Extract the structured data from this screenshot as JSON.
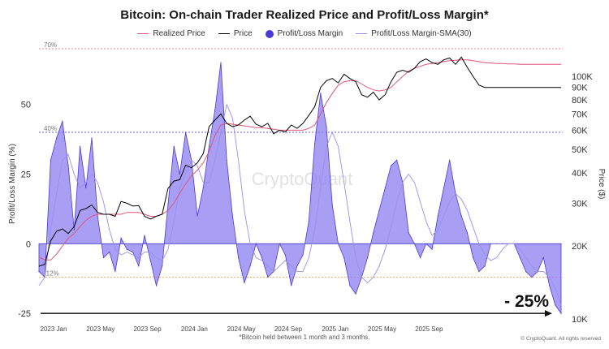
{
  "chart_data": {
    "type": "area",
    "title": "Bitcoin: On-chain Trader Realized Price and Profit/Loss Margin*",
    "footnote": "*Bitcoin held between 1 month and 3 months.",
    "copyright": "© CryptoQuant. All rights reserved",
    "watermark": "CryptoQuant",
    "annotation": "- 25%",
    "ylabel_left": "Profit/Loss Margin (%)",
    "ylabel_right": "Price ($)",
    "left_ticks": [
      "50",
      "25",
      "0",
      "-25"
    ],
    "right_ticks": [
      "100K",
      "90K",
      "80K",
      "70K",
      "60K",
      "50K",
      "40K",
      "30K",
      "20K",
      "10K"
    ],
    "x_ticks": [
      "2023 Jan",
      "2023 May",
      "2023 Sep",
      "2024 Jan",
      "2024 May",
      "2024 Sep",
      "2025 Jan",
      "2025 May",
      "2025 Sep"
    ],
    "ylim_left": [
      -27,
      70
    ],
    "ylim_right_log": [
      10000,
      130000
    ],
    "reference_lines": [
      {
        "label": "70%",
        "value": 70,
        "color": "#e28a8a"
      },
      {
        "label": "40%",
        "value": 40,
        "color": "#6a5acd"
      },
      {
        "label": "-12%",
        "value": -12,
        "color": "#f0b070"
      }
    ],
    "colors": {
      "realized_price": "#e05577",
      "price": "#000000",
      "margin_fill": "#5b4cdb",
      "margin_sma": "#8f82f0"
    },
    "legend": [
      {
        "name": "Realized Price",
        "kind": "line",
        "color": "#e05577"
      },
      {
        "name": "Price",
        "kind": "line",
        "color": "#000000"
      },
      {
        "name": "Profit/Loss Margin",
        "kind": "dot",
        "color": "#4b3ad6"
      },
      {
        "name": "Profit/Loss Margin-SMA(30)",
        "kind": "line",
        "color": "#9a8ef0"
      }
    ],
    "x_months": [
      0,
      0.5,
      1,
      1.5,
      2,
      2.5,
      3,
      3.5,
      4,
      4.5,
      5,
      5.5,
      6,
      6.5,
      7,
      7.5,
      8,
      8.5,
      9,
      9.5,
      10,
      10.5,
      11,
      11.5,
      12,
      12.5,
      13,
      13.5,
      14,
      14.5,
      15,
      15.5,
      16,
      16.5,
      17,
      17.5,
      18,
      18.5,
      19,
      19.5,
      20,
      20.5,
      21,
      21.5,
      22,
      22.5,
      23,
      23.5,
      24,
      24.5,
      25,
      25.5,
      26,
      26.5,
      27,
      27.5,
      28,
      28.5,
      29,
      29.5,
      30,
      30.5,
      31,
      31.5,
      32,
      32.5,
      33,
      33.5,
      34,
      34.5,
      35,
      35.5,
      36,
      36.5,
      37,
      37.5,
      38,
      38.5,
      39,
      39.5,
      40,
      40.5,
      41,
      41.5,
      42,
      42.5,
      43,
      43.5,
      44,
      44.5
    ],
    "margin": [
      -10,
      -12,
      30,
      38,
      44,
      28,
      5,
      35,
      20,
      38,
      10,
      -5,
      -3,
      -10,
      2,
      -2,
      -3,
      -8,
      3,
      -6,
      -15,
      -8,
      14,
      35,
      25,
      40,
      30,
      10,
      20,
      35,
      48,
      65,
      30,
      10,
      -5,
      -14,
      -8,
      0,
      -5,
      -12,
      -10,
      0,
      -4,
      -15,
      -8,
      -4,
      8,
      36,
      54,
      42,
      14,
      0,
      -5,
      -15,
      -18,
      -12,
      -5,
      4,
      12,
      20,
      28,
      30,
      22,
      4,
      0,
      -5,
      0,
      -2,
      10,
      20,
      30,
      18,
      10,
      4,
      -5,
      -10,
      -8,
      0,
      0,
      0,
      0,
      0,
      -5,
      -10,
      -12,
      -10,
      -5,
      -15,
      -22,
      -25
    ],
    "margin_sma": [
      -15,
      -12,
      5,
      18,
      30,
      32,
      25,
      20,
      22,
      25,
      22,
      15,
      5,
      -2,
      -4,
      -3,
      -4,
      -5,
      -3,
      -3,
      -5,
      -6,
      -2,
      8,
      20,
      25,
      30,
      28,
      22,
      22,
      30,
      40,
      50,
      45,
      30,
      12,
      0,
      -5,
      -6,
      -8,
      -10,
      -8,
      -6,
      -8,
      -10,
      -10,
      -5,
      5,
      20,
      35,
      40,
      35,
      22,
      8,
      -5,
      -12,
      -14,
      -12,
      -8,
      -2,
      6,
      15,
      22,
      25,
      22,
      15,
      8,
      3,
      5,
      10,
      15,
      18,
      16,
      12,
      6,
      0,
      -4,
      -6,
      -5,
      -2,
      0,
      0,
      -2,
      -5,
      -8,
      -10,
      -10,
      -12,
      -16,
      -22
    ],
    "price": [
      16500,
      16800,
      21000,
      23000,
      23500,
      22500,
      24000,
      28000,
      28500,
      29500,
      27500,
      27000,
      27000,
      26500,
      30500,
      30000,
      29200,
      29300,
      26500,
      25800,
      26500,
      27000,
      34500,
      37000,
      37500,
      43000,
      42000,
      44000,
      48000,
      62000,
      66000,
      70000,
      64000,
      62000,
      63000,
      66000,
      68500,
      63500,
      62000,
      64000,
      58000,
      60000,
      59000,
      63000,
      61000,
      64000,
      69000,
      75000,
      90000,
      96000,
      98000,
      94000,
      102000,
      98000,
      95000,
      84000,
      82000,
      86000,
      80000,
      84000,
      95000,
      104000,
      106000,
      104000,
      108000,
      115000,
      118000,
      114000,
      112000,
      117000,
      119000,
      112000,
      120000,
      109000,
      100000,
      92000,
      90000,
      90000,
      90000,
      90000,
      90000,
      90000,
      90000,
      90000,
      90000,
      90000,
      90000,
      90000,
      90000,
      90000
    ],
    "realized_price": [
      18000,
      17500,
      17500,
      18500,
      20000,
      21500,
      22500,
      24000,
      25500,
      26500,
      27000,
      27000,
      27000,
      27000,
      27000,
      27500,
      27500,
      27500,
      27000,
      26500,
      26500,
      27000,
      28000,
      30000,
      33000,
      36000,
      39000,
      41000,
      44000,
      49000,
      57000,
      63000,
      64000,
      63500,
      63000,
      62500,
      62000,
      61500,
      61500,
      61000,
      60500,
      60000,
      60000,
      60000,
      60000,
      60000,
      61000,
      63000,
      70000,
      78000,
      85000,
      92000,
      95000,
      96000,
      96000,
      93000,
      90000,
      88000,
      87000,
      88000,
      90000,
      95000,
      100000,
      105000,
      108000,
      110000,
      112000,
      113000,
      114000,
      115000,
      116000,
      116500,
      117000,
      117000,
      116000,
      115000,
      114000,
      113500,
      113000,
      113000,
      112500,
      112500,
      112000,
      112000,
      112000,
      112000,
      112000,
      112000,
      112000,
      112000
    ]
  }
}
